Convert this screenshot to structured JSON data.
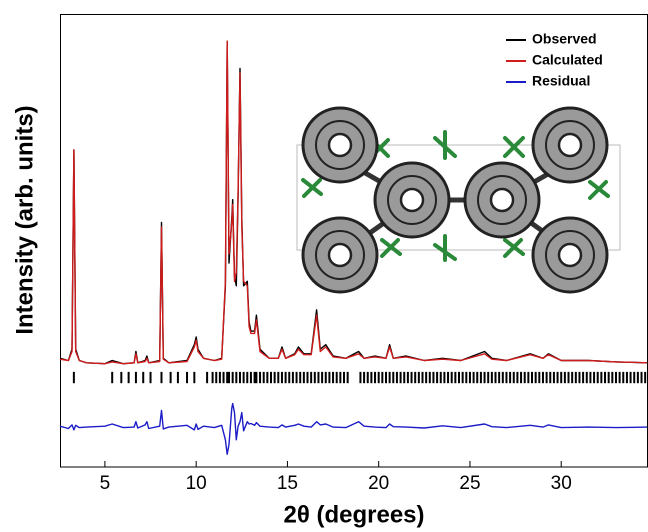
{
  "chart_data": {
    "type": "line",
    "xlabel": "2θ (degrees)",
    "ylabel": "Intensity (arb. units)",
    "xlim": [
      2.54,
      34.7
    ],
    "ylim": [
      0,
      100
    ],
    "xticks": [
      5,
      10,
      15,
      20,
      25,
      30
    ],
    "legend": "upper right",
    "x": [
      2.54,
      3.0,
      3.2,
      3.3,
      3.4,
      3.6,
      4.0,
      5.0,
      5.4,
      6.0,
      6.6,
      6.7,
      6.8,
      7.2,
      7.3,
      7.4,
      8.0,
      8.1,
      8.2,
      8.5,
      9.5,
      9.9,
      10.0,
      10.1,
      10.4,
      11.0,
      11.4,
      11.6,
      11.7,
      11.8,
      11.95,
      12.0,
      12.1,
      12.2,
      12.3,
      12.4,
      12.5,
      12.6,
      12.8,
      12.9,
      13.0,
      13.2,
      13.3,
      13.5,
      14.0,
      14.5,
      14.7,
      14.9,
      15.4,
      15.6,
      15.9,
      16.3,
      16.6,
      16.8,
      17.1,
      17.5,
      18.2,
      18.9,
      19.2,
      19.8,
      20.4,
      20.6,
      20.8,
      21.5,
      22.5,
      23.5,
      24.5,
      25.8,
      26.2,
      27.0,
      28.3,
      29.0,
      29.3,
      30.0,
      31.5,
      33.0,
      34.7
    ],
    "series": [
      {
        "name": "Observed",
        "color": "#000000",
        "values": [
          24,
          23.5,
          26,
          70,
          26,
          23.5,
          23,
          22.8,
          23.5,
          22.8,
          23,
          25.5,
          23,
          23.5,
          24.5,
          23,
          23.5,
          54,
          24,
          23,
          23.5,
          27,
          28.7,
          26,
          24,
          23.5,
          24,
          40,
          94,
          45,
          55,
          59,
          42,
          40,
          60,
          88,
          55,
          40,
          41,
          32,
          30,
          30,
          33.5,
          26,
          24,
          24,
          26.5,
          24,
          25,
          26.5,
          25,
          25,
          34.7,
          26,
          27,
          24.5,
          24,
          25.5,
          24,
          24.5,
          24,
          27,
          24,
          24.5,
          23.5,
          24,
          23.5,
          25.5,
          24,
          23.5,
          25,
          24,
          25,
          23.5,
          23.5,
          23.2,
          23
        ]
      },
      {
        "name": "Calculated",
        "color": "#d01c1c",
        "values": [
          23.8,
          23.5,
          25.5,
          70,
          25.5,
          23.5,
          23,
          22.8,
          23.2,
          22.8,
          23,
          25,
          23,
          23.3,
          24,
          23,
          23.3,
          53,
          23.8,
          23,
          23.3,
          26.5,
          28,
          25.5,
          24,
          23.5,
          23.8,
          41,
          94,
          47,
          54,
          58,
          41,
          43,
          61,
          87,
          53,
          41,
          40,
          31,
          29.5,
          29.5,
          32.5,
          25.5,
          24,
          24,
          26,
          24,
          24.8,
          26,
          24.8,
          24.8,
          33.5,
          25.5,
          26.5,
          24.3,
          24,
          25,
          24,
          24.3,
          24,
          26.5,
          24,
          24.3,
          23.5,
          23.8,
          23.5,
          25,
          23.8,
          23.5,
          24.8,
          24,
          24.8,
          23.5,
          23.5,
          23.2,
          23
        ]
      },
      {
        "name": "Residual",
        "color": "#1c1cc8",
        "values": [
          9,
          8.5,
          9.3,
          8.2,
          9.2,
          8.7,
          8.8,
          9,
          9.5,
          8.7,
          8.8,
          10,
          8.6,
          9.3,
          10,
          8.5,
          9,
          12.5,
          8.4,
          8.8,
          9.2,
          8.2,
          9.5,
          8.3,
          9,
          8.7,
          9.2,
          6,
          2.8,
          5,
          13,
          14,
          12,
          6,
          9,
          10,
          12,
          8,
          10,
          9.5,
          9.6,
          9.2,
          9.8,
          9,
          8.8,
          8.7,
          9.3,
          8.8,
          9.2,
          9.5,
          9,
          8.8,
          10,
          9.3,
          9.5,
          8.8,
          8.7,
          10,
          9,
          8.8,
          8.7,
          9.5,
          8.9,
          8.8,
          8.6,
          9.1,
          8.7,
          9.5,
          8.9,
          8.7,
          9.2,
          8.8,
          9.3,
          8.7,
          8.8,
          8.7,
          8.8
        ]
      }
    ],
    "reflections": [
      3.3,
      5.4,
      5.9,
      6.3,
      6.7,
      7.1,
      7.5,
      8.1,
      8.6,
      9.0,
      9.5,
      9.9,
      10.6,
      10.9,
      11.1,
      11.3,
      11.5,
      11.7,
      11.8,
      12.0,
      12.2,
      12.4,
      12.6,
      12.8,
      13.0,
      13.2,
      13.3,
      13.5,
      13.7,
      13.9,
      14.1,
      14.3,
      14.5,
      14.7,
      14.9,
      15.1,
      15.3,
      15.5,
      15.7,
      15.9,
      16.1,
      16.3,
      16.5,
      16.7,
      16.9,
      17.1,
      17.3,
      17.5,
      17.7,
      17.9,
      18.1,
      18.3,
      19.0,
      19.2,
      19.4,
      19.6,
      19.8,
      20.0,
      20.2,
      20.4,
      20.6,
      20.8,
      21.0,
      21.2,
      21.4,
      21.6,
      21.8,
      22.0,
      22.2,
      22.4,
      22.6,
      22.8,
      23.0,
      23.2,
      23.4,
      23.6,
      23.8,
      24.0,
      24.2,
      24.4,
      24.6,
      24.8,
      25.0,
      25.2,
      25.4,
      25.6,
      25.8,
      26.0,
      26.2,
      26.4,
      26.6,
      26.8,
      27.0,
      27.2,
      27.4,
      27.6,
      27.8,
      28.0,
      28.2,
      28.4,
      28.6,
      28.8,
      29.0,
      29.2,
      29.4,
      29.6,
      29.8,
      30.0,
      30.2,
      30.4,
      30.6,
      30.8,
      31.0,
      31.2,
      31.4,
      31.6,
      31.8,
      32.0,
      32.2,
      32.4,
      32.6,
      32.8,
      33.0,
      33.2,
      33.4,
      33.6,
      33.8,
      34.0,
      34.2,
      34.4,
      34.6
    ]
  }
}
